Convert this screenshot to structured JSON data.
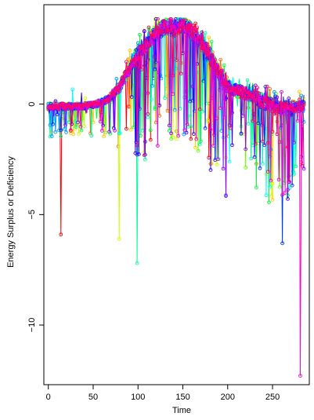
{
  "chart_data": {
    "type": "line",
    "title": "",
    "xlabel": "Time",
    "ylabel": "Energy Surplus or Deficiency",
    "xlim": [
      -5,
      291
    ],
    "ylim": [
      -12.7,
      4.5
    ],
    "x_ticks": [
      0,
      50,
      100,
      150,
      200,
      250
    ],
    "y_ticks": [
      -10,
      -5,
      0
    ],
    "y_tick_labels": [
      "−10",
      "−5",
      "0"
    ],
    "grid": false,
    "legend": "none",
    "markers": "open-circle",
    "series_count": 14,
    "palette": [
      "#ff0000",
      "#ff6a00",
      "#ffcc00",
      "#ccff00",
      "#66ff00",
      "#00ff33",
      "#00ff99",
      "#00ffff",
      "#0099ff",
      "#0033ff",
      "#3300ff",
      "#9900ff",
      "#ff00cc",
      "#ff0066"
    ],
    "baseline": {
      "x": [
        0,
        10,
        20,
        30,
        40,
        50,
        60,
        70,
        80,
        90,
        100,
        110,
        120,
        130,
        140,
        150,
        160,
        170,
        180,
        190,
        200,
        210,
        220,
        230,
        240,
        250,
        260,
        270,
        280,
        285
      ],
      "y": [
        -0.1,
        -0.1,
        -0.1,
        -0.1,
        -0.1,
        -0.05,
        0.1,
        0.3,
        0.8,
        1.6,
        2.3,
        2.7,
        3.2,
        3.5,
        3.4,
        3.6,
        3.3,
        2.8,
        2.2,
        1.4,
        0.8,
        0.6,
        0.5,
        0.3,
        0.1,
        -0.1,
        -0.2,
        -0.2,
        -0.1,
        -0.1
      ]
    },
    "deficiency_extremes": [
      {
        "x": 14,
        "y": -5.9
      },
      {
        "x": 79,
        "y": -6.1
      },
      {
        "x": 99,
        "y": -7.2
      },
      {
        "x": 261,
        "y": -6.3
      },
      {
        "x": 281,
        "y": -12.3
      }
    ]
  }
}
